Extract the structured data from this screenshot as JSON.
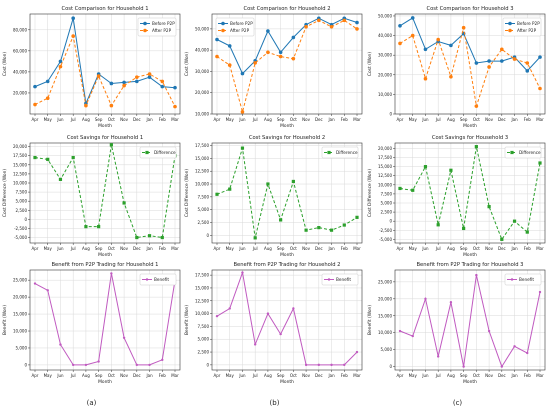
{
  "colors": {
    "before": "#1f77b4",
    "after": "#ff7f0e",
    "difference": "#2ca02c",
    "benefit": "#c05ac0",
    "grid": "#d9d9d9",
    "axis": "#333333"
  },
  "panel_labels": [
    "(a)",
    "(b)",
    "(c)"
  ],
  "chart_data": [
    {
      "id": "cost-h1",
      "type": "line",
      "title": "Cost Comparison for Household 1",
      "xlabel": "Month",
      "ylabel": "Cost (Won)",
      "categories": [
        "Apr",
        "May",
        "Jun",
        "Jul",
        "Aug",
        "Sep",
        "Oct",
        "Nov",
        "Dec",
        "Jan",
        "Feb",
        "Mar"
      ],
      "ylim": [
        0,
        95000
      ],
      "yticks": [
        20000,
        40000,
        60000,
        80000
      ],
      "ytick_labels": [
        "20,000",
        "40,000",
        "60,000",
        "80,000"
      ],
      "grid": true,
      "legend": "top-right",
      "series": [
        {
          "name": "Before P2P",
          "color_key": "before",
          "style": "solid",
          "marker": "circle",
          "values": [
            26000,
            31000,
            50000,
            91000,
            10000,
            38000,
            29000,
            30000,
            31000,
            35000,
            26000,
            25000
          ]
        },
        {
          "name": "After P2P",
          "color_key": "after",
          "style": "dashed",
          "marker": "circle",
          "values": [
            9000,
            15000,
            45000,
            74000,
            8000,
            36000,
            8000,
            27000,
            35000,
            38000,
            31000,
            7000
          ]
        }
      ]
    },
    {
      "id": "cost-h2",
      "type": "line",
      "title": "Cost Comparison for Household 2",
      "xlabel": "Month",
      "ylabel": "Cost (Won)",
      "categories": [
        "Apr",
        "May",
        "Jun",
        "Jul",
        "Aug",
        "Sep",
        "Oct",
        "Nov",
        "Dec",
        "Jan",
        "Feb",
        "Mar"
      ],
      "ylim": [
        10000,
        57000
      ],
      "yticks": [
        10000,
        20000,
        30000,
        40000,
        50000
      ],
      "ytick_labels": [
        "10,000",
        "20,000",
        "30,000",
        "40,000",
        "50,000"
      ],
      "grid": true,
      "legend": "top-left",
      "series": [
        {
          "name": "Before P2P",
          "color_key": "before",
          "style": "solid",
          "marker": "circle",
          "values": [
            45000,
            42000,
            29000,
            35000,
            49000,
            39000,
            46000,
            52000,
            55000,
            52000,
            55000,
            53000
          ]
        },
        {
          "name": "After P2P",
          "color_key": "after",
          "style": "dashed",
          "marker": "circle",
          "values": [
            37000,
            33000,
            11000,
            34000,
            39000,
            37000,
            36000,
            51000,
            54000,
            51000,
            54000,
            50000
          ]
        }
      ]
    },
    {
      "id": "cost-h3",
      "type": "line",
      "title": "Cost Comparison for Household 3",
      "xlabel": "Month",
      "ylabel": "Cost (Won)",
      "categories": [
        "Apr",
        "May",
        "Jun",
        "Jul",
        "Aug",
        "Sep",
        "Oct",
        "Nov",
        "Dec",
        "Jan",
        "Feb",
        "Mar"
      ],
      "ylim": [
        0,
        51000
      ],
      "yticks": [
        0,
        10000,
        20000,
        30000,
        40000,
        50000
      ],
      "ytick_labels": [
        "0",
        "10,000",
        "20,000",
        "30,000",
        "40,000",
        "50,000"
      ],
      "grid": true,
      "legend": "top-right",
      "series": [
        {
          "name": "Before P2P",
          "color_key": "before",
          "style": "solid",
          "marker": "circle",
          "values": [
            45000,
            49000,
            33000,
            37000,
            35000,
            41000,
            26000,
            27000,
            27000,
            29000,
            22000,
            29000
          ]
        },
        {
          "name": "After P2P",
          "color_key": "after",
          "style": "dashed",
          "marker": "circle",
          "values": [
            36000,
            40000,
            18000,
            38000,
            19000,
            44000,
            4000,
            24000,
            33000,
            28000,
            26000,
            13000
          ]
        }
      ]
    },
    {
      "id": "savings-h1",
      "type": "line",
      "title": "Cost Savings for Household 1",
      "xlabel": "Month",
      "ylabel": "Cost Difference (Won)",
      "categories": [
        "Apr",
        "May",
        "Jun",
        "Jul",
        "Aug",
        "Sep",
        "Oct",
        "Nov",
        "Dec",
        "Jan",
        "Feb",
        "Mar"
      ],
      "ylim": [
        -6500,
        21000
      ],
      "yticks": [
        -5000,
        -2500,
        0,
        2500,
        5000,
        7500,
        10000,
        12500,
        15000,
        17500,
        20000
      ],
      "ytick_labels": [
        "-5,000",
        "-2,500",
        "0",
        "2,500",
        "5,000",
        "7,500",
        "10,000",
        "12,500",
        "15,000",
        "17,500",
        "20,000"
      ],
      "grid": true,
      "legend": "top-right",
      "series": [
        {
          "name": "Difference",
          "color_key": "difference",
          "style": "dashed",
          "marker": "square",
          "values": [
            17000,
            16500,
            11000,
            17000,
            -2000,
            -2000,
            20500,
            4500,
            -5000,
            -4500,
            -5000,
            17500
          ]
        }
      ]
    },
    {
      "id": "savings-h2",
      "type": "line",
      "title": "Cost Savings for Household 2",
      "xlabel": "Month",
      "ylabel": "Cost Difference (Won)",
      "categories": [
        "Apr",
        "May",
        "Jun",
        "Jul",
        "Aug",
        "Sep",
        "Oct",
        "Nov",
        "Dec",
        "Jan",
        "Feb",
        "Mar"
      ],
      "ylim": [
        -1500,
        18000
      ],
      "yticks": [
        0,
        2500,
        5000,
        7500,
        10000,
        12500,
        15000,
        17500
      ],
      "ytick_labels": [
        "0",
        "2,500",
        "5,000",
        "7,500",
        "10,000",
        "12,500",
        "15,000",
        "17,500"
      ],
      "grid": true,
      "legend": "top-right",
      "series": [
        {
          "name": "Difference",
          "color_key": "difference",
          "style": "dashed",
          "marker": "square",
          "values": [
            8000,
            9000,
            17000,
            -500,
            10000,
            3000,
            10500,
            1000,
            1500,
            1000,
            2000,
            3500
          ]
        }
      ]
    },
    {
      "id": "savings-h3",
      "type": "line",
      "title": "Cost Savings for Household 3",
      "xlabel": "Month",
      "ylabel": "Cost Difference (Won)",
      "categories": [
        "Apr",
        "May",
        "Jun",
        "Jul",
        "Aug",
        "Sep",
        "Oct",
        "Nov",
        "Dec",
        "Jan",
        "Feb",
        "Mar"
      ],
      "ylim": [
        -6000,
        21500
      ],
      "yticks": [
        -5000,
        -2500,
        0,
        2500,
        5000,
        7500,
        10000,
        12500,
        15000,
        17500,
        20000
      ],
      "ytick_labels": [
        "-5,000",
        "-2,500",
        "0",
        "2,500",
        "5,000",
        "7,500",
        "10,000",
        "12,500",
        "15,000",
        "17,500",
        "20,000"
      ],
      "grid": true,
      "legend": "top-right",
      "series": [
        {
          "name": "Difference",
          "color_key": "difference",
          "style": "dashed",
          "marker": "square",
          "values": [
            9000,
            8500,
            15000,
            -1000,
            14000,
            -2000,
            20500,
            4000,
            -5000,
            0,
            -3000,
            16000
          ]
        }
      ]
    },
    {
      "id": "benefit-h1",
      "type": "line",
      "title": "Benefit from P2P Trading for Household 1",
      "xlabel": "Month",
      "ylabel": "Benefit (Won)",
      "categories": [
        "Apr",
        "May",
        "Jun",
        "Jul",
        "Aug",
        "Sep",
        "Oct",
        "Nov",
        "Dec",
        "Jan",
        "Feb",
        "Mar"
      ],
      "ylim": [
        -1500,
        28000
      ],
      "yticks": [
        0,
        5000,
        10000,
        15000,
        20000,
        25000
      ],
      "ytick_labels": [
        "0",
        "5,000",
        "10,000",
        "15,000",
        "20,000",
        "25,000"
      ],
      "grid": true,
      "legend": "top-right",
      "series": [
        {
          "name": "Benefit",
          "color_key": "benefit",
          "style": "solid",
          "marker": "dot",
          "values": [
            24000,
            22000,
            6000,
            0,
            0,
            1000,
            27000,
            8000,
            0,
            0,
            1500,
            25000
          ]
        }
      ]
    },
    {
      "id": "benefit-h2",
      "type": "line",
      "title": "Benefit from P2P Trading for Household 2",
      "xlabel": "Month",
      "ylabel": "Benefit (Won)",
      "categories": [
        "Apr",
        "May",
        "Jun",
        "Jul",
        "Aug",
        "Sep",
        "Oct",
        "Nov",
        "Dec",
        "Jan",
        "Feb",
        "Mar"
      ],
      "ylim": [
        -1000,
        18500
      ],
      "yticks": [
        0,
        2500,
        5000,
        7500,
        10000,
        12500,
        15000,
        17500
      ],
      "ytick_labels": [
        "0",
        "2,500",
        "5,000",
        "7,500",
        "10,000",
        "12,500",
        "15,000",
        "17,500"
      ],
      "grid": true,
      "legend": "top-right",
      "series": [
        {
          "name": "Benefit",
          "color_key": "benefit",
          "style": "solid",
          "marker": "dot",
          "values": [
            9500,
            11000,
            18000,
            4000,
            10000,
            6000,
            11000,
            0,
            0,
            0,
            0,
            2500
          ]
        }
      ]
    },
    {
      "id": "benefit-h3",
      "type": "line",
      "title": "Benefit from P2P Trading for Household 3",
      "xlabel": "Month",
      "ylabel": "Benefit (Won)",
      "categories": [
        "Apr",
        "May",
        "Jun",
        "Jul",
        "Aug",
        "Sep",
        "Oct",
        "Nov",
        "Dec",
        "Jan",
        "Feb",
        "Mar"
      ],
      "ylim": [
        -1000,
        28500
      ],
      "yticks": [
        0,
        5000,
        10000,
        15000,
        20000,
        25000
      ],
      "ytick_labels": [
        "0",
        "5,000",
        "10,000",
        "15,000",
        "20,000",
        "25,000"
      ],
      "grid": true,
      "legend": "top-right",
      "series": [
        {
          "name": "Benefit",
          "color_key": "benefit",
          "style": "solid",
          "marker": "dot",
          "values": [
            10500,
            9000,
            20000,
            3000,
            19000,
            0,
            27000,
            10500,
            0,
            6000,
            4000,
            22000
          ]
        }
      ]
    }
  ]
}
